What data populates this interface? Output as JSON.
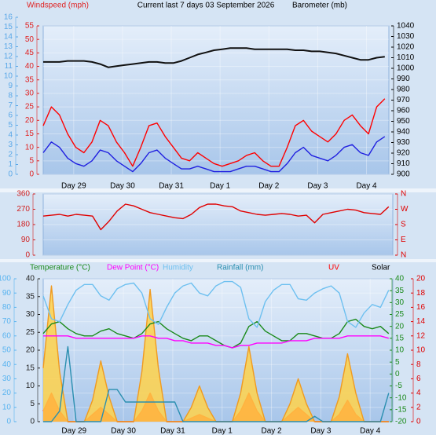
{
  "chart_data": [
    {
      "type": "line",
      "title": "Current last 7 days 03 September 2026",
      "ylabel": "Windspeed (mph)",
      "y2label": "Barometer (mb)",
      "x": [
        0,
        4,
        8,
        12,
        16,
        20,
        24,
        28,
        32,
        36,
        40,
        44,
        48,
        52,
        56,
        60,
        64,
        68,
        72,
        76,
        80,
        84,
        88,
        92,
        96,
        100,
        104,
        108,
        112,
        116,
        120,
        124,
        128,
        132,
        136,
        140,
        144,
        148,
        152,
        156,
        160,
        164,
        168
      ],
      "xlim": [
        0,
        170
      ],
      "xticks": [
        {
          "value": 15,
          "label": "Day 29"
        },
        {
          "value": 39,
          "label": "Day 30"
        },
        {
          "value": 63,
          "label": "Day 31"
        },
        {
          "value": 87,
          "label": "Day 1"
        },
        {
          "value": 111,
          "label": "Day 2"
        },
        {
          "value": 135,
          "label": "Day 3"
        },
        {
          "value": 159,
          "label": "Day 4"
        }
      ],
      "ylim": [
        0,
        55
      ],
      "yticks": [
        0,
        5,
        10,
        15,
        20,
        25,
        30,
        35,
        40,
        45,
        50,
        55
      ],
      "y2lim": [
        900,
        1040
      ],
      "y2ticks": [
        900,
        910,
        920,
        930,
        940,
        950,
        960,
        970,
        980,
        990,
        1000,
        1010,
        1020,
        1030,
        1040
      ],
      "y3lim": [
        0,
        16
      ],
      "y3ticks": [
        0,
        1,
        2,
        3,
        4,
        5,
        6,
        7,
        8,
        9,
        10,
        11,
        12,
        13,
        14,
        15,
        16
      ],
      "axis_colors": {
        "y": "#e02020",
        "y2": "#000000",
        "y3": "#5aa8e8"
      },
      "grid": true,
      "series": [
        {
          "color": "#ff0000",
          "values": [
            18,
            25,
            22,
            15,
            10,
            8,
            12,
            20,
            18,
            12,
            8,
            3,
            10,
            18,
            19,
            14,
            10,
            6,
            5,
            8,
            6,
            4,
            3,
            4,
            5,
            7,
            8,
            5,
            3,
            3,
            10,
            18,
            20,
            16,
            14,
            12,
            15,
            20,
            22,
            18,
            15,
            25,
            28
          ]
        },
        {
          "color": "#2020e0",
          "values": [
            8,
            12,
            10,
            6,
            4,
            3,
            5,
            9,
            8,
            5,
            3,
            1,
            4,
            8,
            9,
            6,
            4,
            2,
            2,
            3,
            2,
            1,
            1,
            1,
            2,
            3,
            3,
            2,
            1,
            1,
            4,
            8,
            10,
            7,
            6,
            5,
            7,
            10,
            11,
            8,
            7,
            12,
            14
          ]
        },
        {
          "color": "#111111",
          "axis": "y2",
          "values": [
            1006,
            1006,
            1006,
            1007,
            1007,
            1007,
            1006,
            1004,
            1001,
            1002,
            1003,
            1004,
            1005,
            1006,
            1006,
            1005,
            1005,
            1007,
            1010,
            1013,
            1015,
            1017,
            1018,
            1019,
            1019,
            1019,
            1018,
            1018,
            1018,
            1018,
            1018,
            1017,
            1017,
            1016,
            1016,
            1015,
            1014,
            1012,
            1010,
            1008,
            1008,
            1010,
            1011
          ]
        }
      ]
    },
    {
      "type": "line",
      "x": [
        0,
        4,
        8,
        12,
        16,
        20,
        24,
        28,
        32,
        36,
        40,
        44,
        48,
        52,
        56,
        60,
        64,
        68,
        72,
        76,
        80,
        84,
        88,
        92,
        96,
        100,
        104,
        108,
        112,
        116,
        120,
        124,
        128,
        132,
        136,
        140,
        144,
        148,
        152,
        156,
        160,
        164,
        168
      ],
      "xlim": [
        0,
        170
      ],
      "ylim": [
        0,
        360
      ],
      "yticks": [
        0,
        90,
        180,
        270,
        360
      ],
      "y2lim": [
        0,
        360
      ],
      "y2ticks": [
        {
          "value": 360,
          "label": "N"
        },
        {
          "value": 270,
          "label": "W"
        },
        {
          "value": 180,
          "label": "S"
        },
        {
          "value": 90,
          "label": "E"
        },
        {
          "value": 0,
          "label": "N"
        }
      ],
      "axis_colors": {
        "y": "#d02020",
        "y2": "#e00000"
      },
      "grid": true,
      "series": [
        {
          "color": "#e00000",
          "values": [
            230,
            235,
            240,
            230,
            240,
            235,
            230,
            150,
            200,
            260,
            300,
            290,
            270,
            250,
            240,
            230,
            220,
            215,
            240,
            280,
            300,
            300,
            290,
            285,
            260,
            250,
            240,
            235,
            240,
            245,
            240,
            230,
            235,
            190,
            240,
            250,
            260,
            270,
            265,
            250,
            245,
            240,
            285
          ]
        }
      ]
    },
    {
      "type": "line",
      "x": [
        0,
        4,
        8,
        12,
        16,
        20,
        24,
        28,
        32,
        36,
        40,
        44,
        48,
        52,
        56,
        60,
        64,
        68,
        72,
        76,
        80,
        84,
        88,
        92,
        96,
        100,
        104,
        108,
        112,
        116,
        120,
        124,
        128,
        132,
        136,
        140,
        144,
        148,
        152,
        156,
        160,
        164,
        168
      ],
      "xlim": [
        0,
        170
      ],
      "xticks": [
        {
          "value": 15,
          "label": "Day 29"
        },
        {
          "value": 39,
          "label": "Day 30"
        },
        {
          "value": 63,
          "label": "Day 31"
        },
        {
          "value": 87,
          "label": "Day 1"
        },
        {
          "value": 111,
          "label": "Day 2"
        },
        {
          "value": 135,
          "label": "Day 3"
        },
        {
          "value": 159,
          "label": "Day 4"
        }
      ],
      "ylim": [
        0,
        100
      ],
      "yticks": [
        0,
        10,
        20,
        30,
        40,
        50,
        60,
        70,
        80,
        90,
        100
      ],
      "y3lim": [
        0,
        40
      ],
      "y3ticks": [
        0,
        5,
        10,
        15,
        20,
        25,
        30,
        35,
        40
      ],
      "y2lim": [
        -20,
        40
      ],
      "y2ticks": [
        -20,
        -15,
        -10,
        -5,
        0,
        5,
        10,
        15,
        20,
        25,
        30,
        35,
        40
      ],
      "y4lim": [
        0,
        20
      ],
      "y4ticks": [
        0,
        2,
        4,
        6,
        8,
        10,
        12,
        14,
        16,
        18,
        20
      ],
      "axis_colors": {
        "y": "#5ab4f0",
        "y3": "#222222",
        "y2": "#1a8a1a",
        "y4": "#e00000"
      },
      "grid": true,
      "series": [
        {
          "name": "Temperature (°C)",
          "color": "#1a8a1a",
          "axis": "y2",
          "values": [
            17,
            21,
            22,
            19,
            17,
            16,
            16,
            18,
            19,
            17,
            16,
            15,
            17,
            21,
            22,
            19,
            17,
            15,
            14,
            16,
            16,
            14,
            12,
            11,
            13,
            20,
            22,
            18,
            16,
            14,
            14,
            17,
            17,
            16,
            15,
            15,
            17,
            22,
            23,
            20,
            19,
            20,
            17
          ]
        },
        {
          "name": "Dew Point (°C)",
          "color": "#ff00ff",
          "axis": "y2",
          "values": [
            16,
            16,
            16,
            16,
            15,
            15,
            15,
            15,
            15,
            15,
            15,
            15,
            16,
            16,
            15,
            15,
            14,
            14,
            13,
            13,
            13,
            12,
            12,
            11,
            12,
            12,
            13,
            13,
            13,
            13,
            14,
            14,
            14,
            15,
            15,
            15,
            15,
            16,
            16,
            16,
            16,
            16,
            15
          ]
        },
        {
          "name": "Humidity",
          "color": "#6ec0f0",
          "values": [
            88,
            72,
            70,
            82,
            92,
            96,
            96,
            88,
            85,
            93,
            96,
            97,
            90,
            72,
            68,
            80,
            90,
            95,
            97,
            90,
            88,
            95,
            98,
            98,
            94,
            72,
            66,
            84,
            92,
            96,
            96,
            86,
            85,
            90,
            93,
            95,
            90,
            70,
            66,
            76,
            82,
            80,
            92
          ]
        },
        {
          "name": "Rainfall (mm)",
          "color": "#2a8fb0",
          "axis": "y3",
          "values": [
            0,
            0,
            3,
            21,
            0,
            0,
            0,
            0,
            9,
            9,
            5.5,
            5.5,
            5.5,
            5.5,
            5.5,
            5.5,
            5.5,
            0,
            0,
            0,
            0,
            0,
            0,
            0,
            0,
            0,
            0,
            0,
            0,
            0,
            0,
            0,
            0,
            1.5,
            0,
            0,
            0,
            0,
            0,
            0,
            0,
            0,
            8
          ]
        },
        {
          "name": "UV",
          "color": "#ff0000",
          "axis": "y4",
          "kind": "area",
          "values": [
            1.5,
            4,
            1.5,
            0,
            0,
            0,
            1,
            2,
            1,
            0,
            0,
            0,
            1.5,
            4,
            1.5,
            0,
            0,
            0,
            0.5,
            1,
            0.5,
            0,
            0,
            0,
            1.5,
            4,
            1.5,
            0,
            0,
            0,
            1,
            2,
            1,
            0,
            0,
            0,
            1,
            3,
            1,
            0,
            0,
            0,
            0
          ]
        },
        {
          "name": "Solar",
          "color": "#000000",
          "axis": "y3",
          "kind": "area",
          "fill": "#ffd24a",
          "stroke": "#f09a20",
          "values": [
            15,
            38,
            14,
            0,
            0,
            0,
            6,
            17,
            7,
            0,
            0,
            0,
            14,
            37,
            15,
            0,
            0,
            0,
            4,
            10,
            4,
            0,
            0,
            0,
            8,
            21,
            8,
            0,
            0,
            0,
            5,
            12,
            5,
            0,
            0,
            0,
            7,
            19,
            8,
            0,
            0,
            0,
            0
          ]
        }
      ]
    }
  ]
}
